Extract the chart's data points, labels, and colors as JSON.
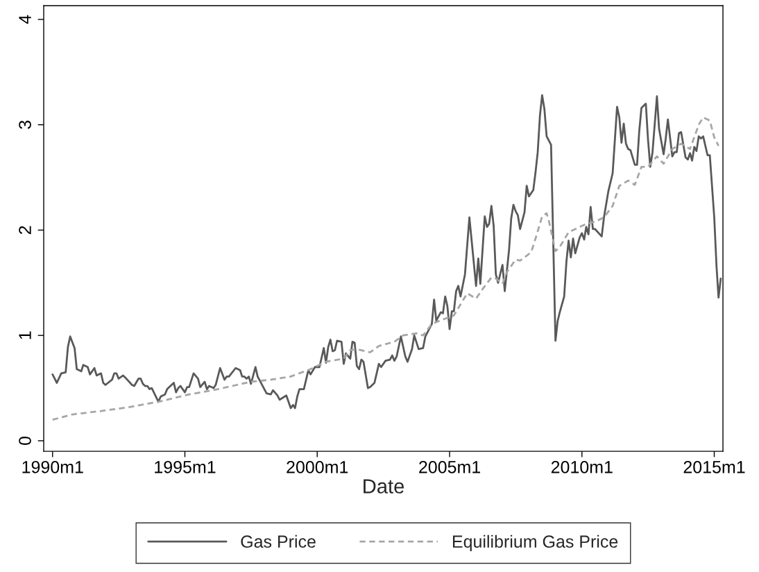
{
  "chart_data": {
    "type": "line",
    "xlabel": "Date",
    "xlim": [
      "1989-09",
      "2015-05"
    ],
    "ylim": [
      -0.1,
      4.13
    ],
    "xticks": [
      {
        "value": "1990-01",
        "label": "1990m1"
      },
      {
        "value": "1995-01",
        "label": "1995m1"
      },
      {
        "value": "2000-01",
        "label": "2000m1"
      },
      {
        "value": "2005-01",
        "label": "2005m1"
      },
      {
        "value": "2010-01",
        "label": "2010m1"
      },
      {
        "value": "2015-01",
        "label": "2015m1"
      }
    ],
    "yticks": [
      0,
      1,
      2,
      3,
      4
    ],
    "grid": false,
    "legend": "bottom",
    "marker": "none",
    "series": [
      {
        "name": "Gas Price",
        "color": "#595959",
        "line_style": "solid",
        "x": [
          "1990-01",
          "1990-03",
          "1990-05",
          "1990-07",
          "1990-08",
          "1990-09",
          "1990-11",
          "1990-12",
          "1991-02",
          "1991-03",
          "1991-05",
          "1991-06",
          "1991-08",
          "1991-09",
          "1991-11",
          "1991-12",
          "1992-01",
          "1992-04",
          "1992-05",
          "1992-06",
          "1992-07",
          "1992-09",
          "1992-10",
          "1993-01",
          "1993-02",
          "1993-04",
          "1993-05",
          "1993-06",
          "1993-07",
          "1993-08",
          "1993-09",
          "1993-10",
          "1994-01",
          "1994-02",
          "1994-04",
          "1994-05",
          "1994-07",
          "1994-08",
          "1994-09",
          "1994-10",
          "1994-11",
          "1995-01",
          "1995-02",
          "1995-03",
          "1995-05",
          "1995-07",
          "1995-08",
          "1995-10",
          "1995-11",
          "1995-12",
          "1996-02",
          "1996-03",
          "1996-05",
          "1996-07",
          "1996-08",
          "1996-09",
          "1996-12",
          "1997-02",
          "1997-03",
          "1997-04",
          "1997-05",
          "1997-06",
          "1997-07",
          "1997-09",
          "1997-10",
          "1998-02",
          "1998-04",
          "1998-05",
          "1998-07",
          "1998-08",
          "1998-11",
          "1999-01",
          "1999-02",
          "1999-03",
          "1999-04",
          "1999-05",
          "1999-07",
          "1999-09",
          "1999-10",
          "1999-12",
          "2000-02",
          "2000-04",
          "2000-05",
          "2000-06",
          "2000-07",
          "2000-08",
          "2000-09",
          "2000-10",
          "2000-12",
          "2001-01",
          "2001-02",
          "2001-04",
          "2001-05",
          "2001-06",
          "2001-07",
          "2001-08",
          "2001-09",
          "2001-10",
          "2001-12",
          "2002-01",
          "2002-03",
          "2002-05",
          "2002-06",
          "2002-08",
          "2002-10",
          "2002-11",
          "2002-12",
          "2003-01",
          "2003-03",
          "2003-05",
          "2003-06",
          "2003-08",
          "2003-09",
          "2003-11",
          "2004-01",
          "2004-02",
          "2004-05",
          "2004-06",
          "2004-07",
          "2004-09",
          "2004-10",
          "2004-11",
          "2004-12",
          "2005-01",
          "2005-02",
          "2005-03",
          "2005-04",
          "2005-05",
          "2005-06",
          "2005-08",
          "2005-10",
          "2006-01",
          "2006-02",
          "2006-03",
          "2006-05",
          "2006-06",
          "2006-07",
          "2006-08",
          "2006-09",
          "2006-10",
          "2006-11",
          "2007-01",
          "2007-02",
          "2007-04",
          "2007-05",
          "2007-06",
          "2007-07",
          "2007-08",
          "2007-09",
          "2007-11",
          "2007-12",
          "2008-01",
          "2008-03",
          "2008-04",
          "2008-05",
          "2008-06",
          "2008-07",
          "2008-08",
          "2008-09",
          "2008-11",
          "2009-01",
          "2009-02",
          "2009-03",
          "2009-05",
          "2009-06",
          "2009-07",
          "2009-08",
          "2009-09",
          "2009-10",
          "2009-12",
          "2010-01",
          "2010-02",
          "2010-03",
          "2010-04",
          "2010-05",
          "2010-06",
          "2010-07",
          "2010-10",
          "2010-11",
          "2011-01",
          "2011-03",
          "2011-04",
          "2011-05",
          "2011-06",
          "2011-07",
          "2011-08",
          "2011-09",
          "2011-10",
          "2011-11",
          "2012-01",
          "2012-02",
          "2012-03",
          "2012-04",
          "2012-06",
          "2012-07",
          "2012-08",
          "2012-09",
          "2012-11",
          "2012-12",
          "2013-02",
          "2013-03",
          "2013-04",
          "2013-05",
          "2013-06",
          "2013-07",
          "2013-08",
          "2013-09",
          "2013-10",
          "2013-12",
          "2014-01",
          "2014-02",
          "2014-03",
          "2014-04",
          "2014-05",
          "2014-06",
          "2014-07",
          "2014-08",
          "2014-10",
          "2014-11",
          "2015-01",
          "2015-02",
          "2015-03",
          "2015-04"
        ],
        "values": [
          0.63,
          0.55,
          0.64,
          0.65,
          0.89,
          0.99,
          0.88,
          0.68,
          0.66,
          0.72,
          0.7,
          0.63,
          0.69,
          0.62,
          0.64,
          0.55,
          0.53,
          0.58,
          0.64,
          0.64,
          0.59,
          0.62,
          0.6,
          0.53,
          0.52,
          0.59,
          0.59,
          0.54,
          0.52,
          0.52,
          0.49,
          0.5,
          0.37,
          0.42,
          0.44,
          0.49,
          0.53,
          0.55,
          0.46,
          0.5,
          0.52,
          0.46,
          0.51,
          0.51,
          0.64,
          0.59,
          0.51,
          0.56,
          0.49,
          0.52,
          0.5,
          0.53,
          0.69,
          0.58,
          0.61,
          0.61,
          0.69,
          0.67,
          0.61,
          0.61,
          0.59,
          0.61,
          0.54,
          0.7,
          0.61,
          0.45,
          0.44,
          0.48,
          0.43,
          0.39,
          0.43,
          0.31,
          0.34,
          0.31,
          0.42,
          0.49,
          0.49,
          0.67,
          0.63,
          0.7,
          0.7,
          0.88,
          0.74,
          0.89,
          0.96,
          0.85,
          0.86,
          0.95,
          0.94,
          0.73,
          0.83,
          0.78,
          0.94,
          0.93,
          0.71,
          0.68,
          0.77,
          0.75,
          0.5,
          0.51,
          0.55,
          0.73,
          0.7,
          0.76,
          0.77,
          0.81,
          0.76,
          0.8,
          0.99,
          0.8,
          0.75,
          0.87,
          1.0,
          0.87,
          0.88,
          0.99,
          1.11,
          1.34,
          1.14,
          1.22,
          1.21,
          1.37,
          1.28,
          1.06,
          1.23,
          1.23,
          1.42,
          1.47,
          1.37,
          1.58,
          2.12,
          1.47,
          1.73,
          1.49,
          2.13,
          2.03,
          2.06,
          2.23,
          2.04,
          1.58,
          1.5,
          1.67,
          1.42,
          1.81,
          2.11,
          2.24,
          2.18,
          2.14,
          2.01,
          2.17,
          2.42,
          2.32,
          2.38,
          2.55,
          2.74,
          3.09,
          3.28,
          3.15,
          2.89,
          2.81,
          0.95,
          1.14,
          1.22,
          1.37,
          1.7,
          1.9,
          1.74,
          1.92,
          1.78,
          1.93,
          1.97,
          1.91,
          2.03,
          1.96,
          2.22,
          2.01,
          2.01,
          1.94,
          2.12,
          2.37,
          2.54,
          2.86,
          3.17,
          3.07,
          2.83,
          3.01,
          2.82,
          2.77,
          2.76,
          2.62,
          2.62,
          2.93,
          3.16,
          3.2,
          2.86,
          2.6,
          2.74,
          3.27,
          2.96,
          2.72,
          2.86,
          3.05,
          2.88,
          2.7,
          2.74,
          2.74,
          2.92,
          2.93,
          2.69,
          2.67,
          2.73,
          2.66,
          2.79,
          2.75,
          2.89,
          2.87,
          2.89,
          2.71,
          2.71,
          2.12,
          1.66,
          1.36,
          1.54
        ]
      },
      {
        "name": "Equilibrium Gas Price",
        "color": "#a6a6a6",
        "line_style": "dashed",
        "x": [
          "1990-01",
          "1990-10",
          "1991-10",
          "1992-12",
          "1994-01",
          "1995-03",
          "1996-04",
          "1997-07",
          "1998-04",
          "1999-01",
          "1999-10",
          "2000-05",
          "2001-01",
          "2001-04",
          "2001-07",
          "2002-01",
          "2002-05",
          "2002-12",
          "2003-04",
          "2003-10",
          "2004-01",
          "2004-05",
          "2004-11",
          "2005-03",
          "2005-09",
          "2006-01",
          "2006-04",
          "2006-08",
          "2006-10",
          "2007-01",
          "2007-03",
          "2007-07",
          "2007-09",
          "2008-02",
          "2008-04",
          "2008-07",
          "2008-09",
          "2008-10",
          "2009-01",
          "2009-03",
          "2009-07",
          "2009-11",
          "2010-03",
          "2010-07",
          "2010-11",
          "2011-03",
          "2011-06",
          "2011-10",
          "2012-01",
          "2012-04",
          "2012-07",
          "2012-11",
          "2013-02",
          "2013-06",
          "2013-10",
          "2014-02",
          "2014-06",
          "2014-08",
          "2014-11",
          "2015-01",
          "2015-03"
        ],
        "values": [
          0.2,
          0.25,
          0.28,
          0.32,
          0.37,
          0.44,
          0.49,
          0.56,
          0.58,
          0.61,
          0.68,
          0.75,
          0.78,
          0.86,
          0.87,
          0.84,
          0.9,
          0.94,
          1.0,
          1.02,
          1.0,
          1.11,
          1.16,
          1.19,
          1.4,
          1.35,
          1.44,
          1.55,
          1.54,
          1.49,
          1.6,
          1.72,
          1.71,
          1.79,
          1.92,
          2.13,
          2.16,
          2.09,
          1.8,
          1.84,
          1.98,
          2.02,
          2.06,
          2.08,
          2.12,
          2.23,
          2.42,
          2.47,
          2.43,
          2.6,
          2.6,
          2.7,
          2.63,
          2.77,
          2.82,
          2.77,
          3.0,
          3.07,
          3.04,
          2.88,
          2.8
        ]
      }
    ]
  }
}
